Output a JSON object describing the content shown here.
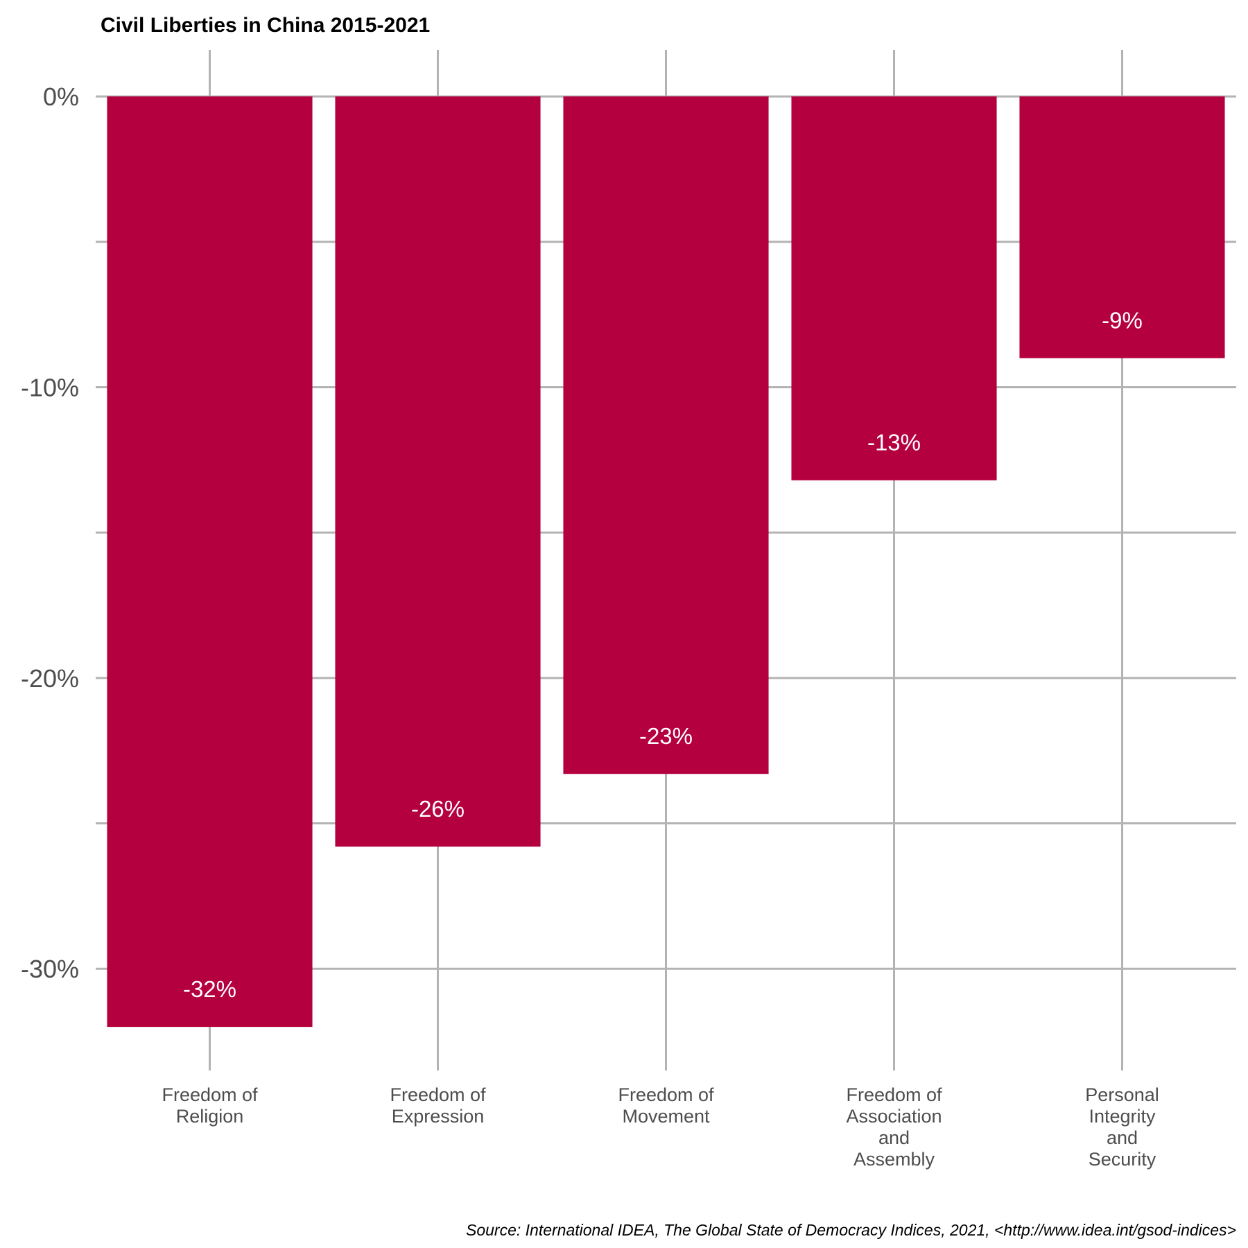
{
  "chart_data": {
    "type": "bar",
    "title": "Civil Liberties in China 2015-2021",
    "categories": [
      [
        "Freedom of",
        "Religion"
      ],
      [
        "Freedom of",
        "Expression"
      ],
      [
        "Freedom of",
        "Movement"
      ],
      [
        "Freedom of",
        "Association",
        "and",
        "Assembly"
      ],
      [
        "Personal",
        "Integrity",
        "and",
        "Security"
      ]
    ],
    "values": [
      -32,
      -25.8,
      -23.3,
      -13.2,
      -9
    ],
    "value_labels": [
      "-32%",
      "-26%",
      "-23%",
      "-13%",
      "-9%"
    ],
    "yticks": [
      0,
      -10,
      -20,
      -30
    ],
    "ytick_labels": [
      "0%",
      "-10%",
      "-20%",
      "-30%"
    ],
    "ylim": [
      -33.5,
      1.6
    ],
    "xlabel": "",
    "ylabel": "",
    "grid": true,
    "legend": "none",
    "bar_color": "#b5003f",
    "caption": "Source: International IDEA, The Global State of Democracy Indices, 2021, <http://www.idea.int/gsod-indices>"
  }
}
